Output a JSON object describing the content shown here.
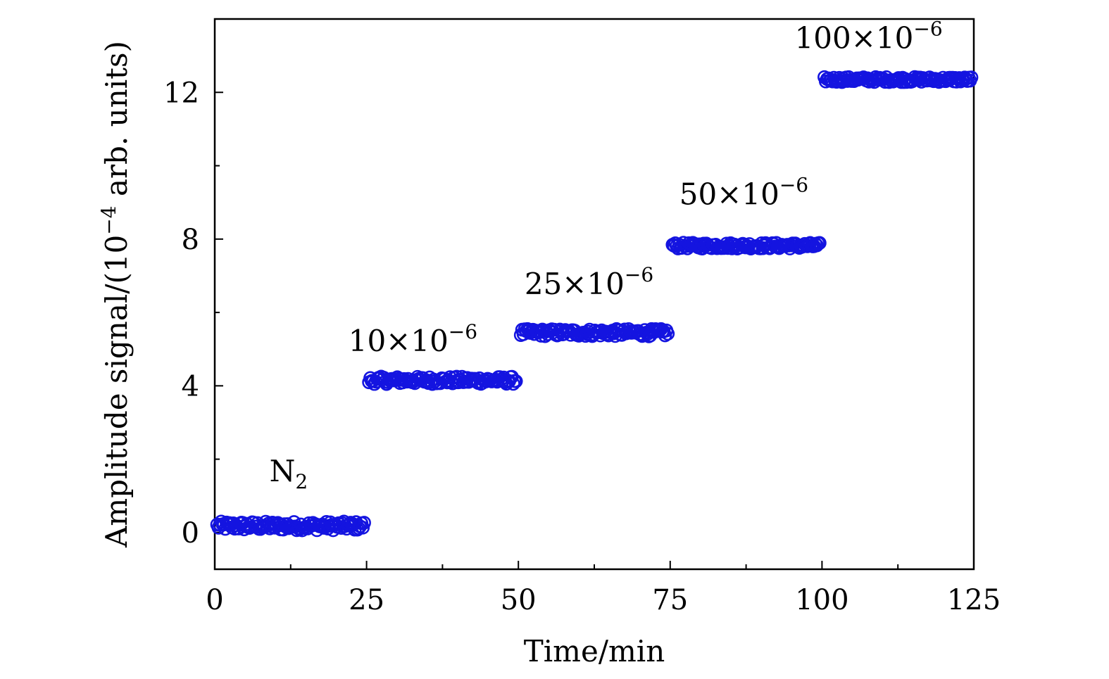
{
  "chart_data": {
    "type": "scatter",
    "title": "",
    "xlabel": "Time/min",
    "ylabel_parts": {
      "prefix": "Amplitude signal/(10",
      "exp": "−4",
      "suffix": " arb. units)"
    },
    "xlim": [
      0,
      125
    ],
    "ylim": [
      -1,
      14
    ],
    "xticks": [
      0,
      25,
      50,
      75,
      100,
      125
    ],
    "xtick_labels": [
      "0",
      "25",
      "50",
      "75",
      "100",
      "125"
    ],
    "yticks": [
      0,
      4,
      8,
      12
    ],
    "ytick_labels": [
      "0",
      "4",
      "8",
      "12"
    ],
    "grid": false,
    "marker": "open-circle",
    "marker_color": "#1414e0",
    "segments": [
      {
        "label_base": "N",
        "label_sub": "2",
        "label_sup": "",
        "label_pos": [
          9,
          1.4
        ],
        "x_range": [
          0,
          25
        ],
        "y_mean": 0.18,
        "y_spread": 0.12
      },
      {
        "label_base": "10×10",
        "label_sub": "",
        "label_sup": "−6",
        "label_pos": [
          22,
          4.95
        ],
        "x_range": [
          25,
          50
        ],
        "y_mean": 4.15,
        "y_spread": 0.1
      },
      {
        "label_base": "25×10",
        "label_sub": "",
        "label_sup": "−6",
        "label_pos": [
          51,
          6.5
        ],
        "x_range": [
          50,
          75
        ],
        "y_mean": 5.45,
        "y_spread": 0.1
      },
      {
        "label_base": "50×10",
        "label_sub": "",
        "label_sup": "−6",
        "label_pos": [
          76.5,
          8.95
        ],
        "x_range": [
          75,
          100
        ],
        "y_mean": 7.82,
        "y_spread": 0.08
      },
      {
        "label_base": "100×10",
        "label_sub": "",
        "label_sup": "−6",
        "label_pos": [
          95.5,
          13.2
        ],
        "x_range": [
          100,
          125
        ],
        "y_mean": 12.35,
        "y_spread": 0.07
      }
    ]
  }
}
